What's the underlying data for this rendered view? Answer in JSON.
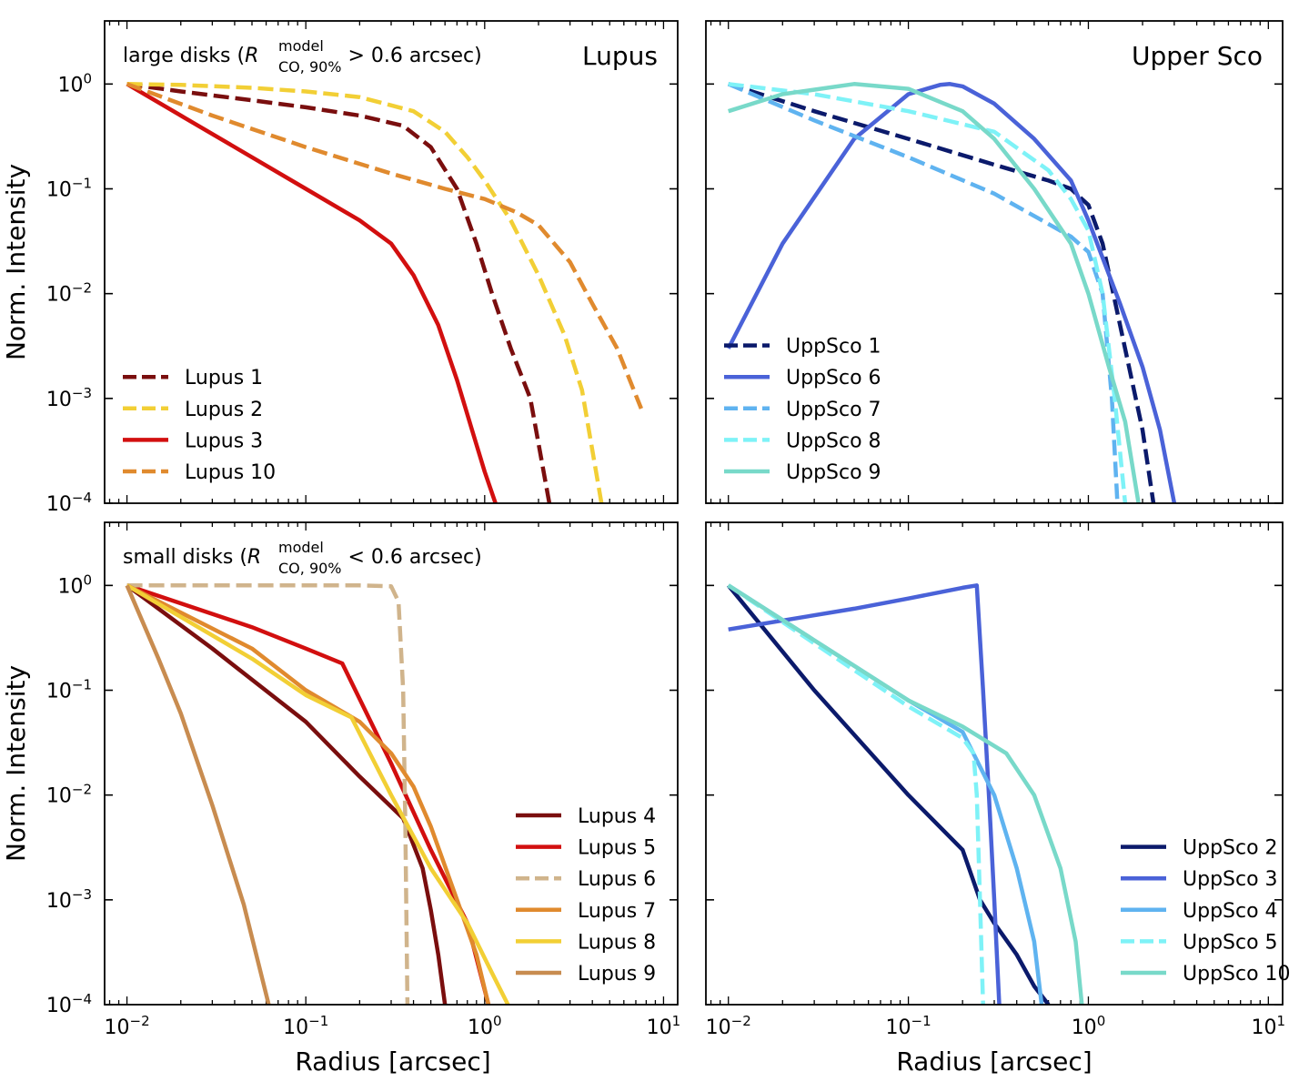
{
  "figure": {
    "xlabel": "Radius [arcsec]",
    "ylabel": "Norm. Intensity"
  },
  "chart_data": [
    {
      "type": "line",
      "xscale": "log",
      "yscale": "log",
      "xlim": [
        0.0075,
        12
      ],
      "ylim": [
        0.0001,
        4
      ],
      "panel_label": "Lupus",
      "annotation": {
        "pre": "large disks (",
        "symbol": "R",
        "sup": "model",
        "sub": "CO, 90%",
        "post": " > 0.6 arcsec)"
      },
      "legend_position": "lower-left",
      "ylabel": "Norm. Intensity",
      "xlabel": "",
      "series": [
        {
          "name": "Lupus 1",
          "color": "#7a0e0e",
          "dash": true,
          "x": [
            0.01,
            0.02,
            0.05,
            0.1,
            0.2,
            0.35,
            0.5,
            0.7,
            0.9,
            1.1,
            1.4,
            1.8,
            2.3
          ],
          "y": [
            1.0,
            0.85,
            0.7,
            0.6,
            0.5,
            0.4,
            0.25,
            0.1,
            0.03,
            0.01,
            0.003,
            0.001,
            0.0001
          ]
        },
        {
          "name": "Lupus 2",
          "color": "#f2cf35",
          "dash": true,
          "x": [
            0.01,
            0.02,
            0.05,
            0.1,
            0.2,
            0.4,
            0.6,
            0.8,
            1.0,
            1.4,
            2.0,
            2.8,
            3.5,
            4.5
          ],
          "y": [
            1.0,
            0.98,
            0.92,
            0.85,
            0.75,
            0.55,
            0.35,
            0.2,
            0.12,
            0.05,
            0.015,
            0.004,
            0.0012,
            0.0001
          ]
        },
        {
          "name": "Lupus 3",
          "color": "#d20f0f",
          "dash": false,
          "x": [
            0.01,
            0.02,
            0.05,
            0.1,
            0.2,
            0.3,
            0.4,
            0.55,
            0.7,
            0.85,
            1.0,
            1.15
          ],
          "y": [
            1.0,
            0.5,
            0.2,
            0.1,
            0.05,
            0.03,
            0.015,
            0.005,
            0.0015,
            0.0005,
            0.0002,
            0.0001
          ]
        },
        {
          "name": "Lupus 10",
          "color": "#e08a2e",
          "dash": true,
          "x": [
            0.01,
            0.03,
            0.1,
            0.3,
            0.6,
            1.0,
            1.5,
            2.0,
            3.0,
            4.0,
            5.5,
            7.5
          ],
          "y": [
            1.0,
            0.5,
            0.25,
            0.14,
            0.1,
            0.08,
            0.06,
            0.045,
            0.02,
            0.008,
            0.003,
            0.0008
          ]
        }
      ]
    },
    {
      "type": "line",
      "xscale": "log",
      "yscale": "log",
      "xlim": [
        0.0075,
        12
      ],
      "ylim": [
        0.0001,
        4
      ],
      "panel_label": "Upper Sco",
      "legend_position": "lower-left",
      "ylabel": "",
      "xlabel": "",
      "series": [
        {
          "name": "UppSco 1",
          "color": "#0b1a6b",
          "dash": true,
          "x": [
            0.01,
            0.03,
            0.1,
            0.3,
            0.6,
            0.8,
            1.0,
            1.2,
            1.5,
            2.0,
            2.3
          ],
          "y": [
            1.0,
            0.55,
            0.3,
            0.17,
            0.12,
            0.1,
            0.07,
            0.03,
            0.005,
            0.0005,
            0.0001
          ]
        },
        {
          "name": "UppSco 6",
          "color": "#4a62d8",
          "dash": false,
          "x": [
            0.01,
            0.02,
            0.05,
            0.1,
            0.15,
            0.17,
            0.2,
            0.3,
            0.5,
            0.8,
            1.0,
            1.5,
            2.0,
            2.5,
            3.0
          ],
          "y": [
            0.003,
            0.03,
            0.3,
            0.8,
            0.98,
            1.0,
            0.95,
            0.65,
            0.3,
            0.12,
            0.05,
            0.008,
            0.002,
            0.0005,
            0.0001
          ]
        },
        {
          "name": "UppSco 7",
          "color": "#5fb3f0",
          "dash": true,
          "x": [
            0.01,
            0.03,
            0.1,
            0.3,
            0.8,
            1.0,
            1.2,
            1.35,
            1.45
          ],
          "y": [
            1.0,
            0.45,
            0.2,
            0.09,
            0.035,
            0.025,
            0.01,
            0.001,
            0.0001
          ]
        },
        {
          "name": "UppSco 8",
          "color": "#7ef2f7",
          "dash": true,
          "x": [
            0.01,
            0.03,
            0.1,
            0.3,
            0.6,
            0.8,
            1.0,
            1.2,
            1.4,
            1.6
          ],
          "y": [
            1.0,
            0.8,
            0.55,
            0.35,
            0.15,
            0.08,
            0.04,
            0.01,
            0.001,
            0.0001
          ]
        },
        {
          "name": "UppSco 9",
          "color": "#78d9c9",
          "dash": false,
          "x": [
            0.01,
            0.02,
            0.05,
            0.1,
            0.2,
            0.3,
            0.5,
            0.8,
            1.0,
            1.3,
            1.6,
            1.9
          ],
          "y": [
            0.55,
            0.8,
            1.0,
            0.9,
            0.55,
            0.3,
            0.1,
            0.03,
            0.01,
            0.002,
            0.0006,
            0.0001
          ]
        }
      ]
    },
    {
      "type": "line",
      "xscale": "log",
      "yscale": "log",
      "xlim": [
        0.0075,
        12
      ],
      "ylim": [
        0.0001,
        4
      ],
      "annotation": {
        "pre": "small disks (",
        "symbol": "R",
        "sup": "model",
        "sub": "CO, 90%",
        "post": " < 0.6 arcsec)"
      },
      "legend_position": "lower-right",
      "ylabel": "Norm. Intensity",
      "xlabel": "Radius [arcsec]",
      "x_ticks": [
        "10^-2",
        "10^-1",
        "10^0",
        "10^1"
      ],
      "series": [
        {
          "name": "Lupus 4",
          "color": "#7a0e0e",
          "dash": false,
          "x": [
            0.01,
            0.03,
            0.1,
            0.2,
            0.35,
            0.45,
            0.5,
            0.55,
            0.6
          ],
          "y": [
            1.0,
            0.25,
            0.05,
            0.015,
            0.006,
            0.002,
            0.0008,
            0.0003,
            0.0001
          ]
        },
        {
          "name": "Lupus 5",
          "color": "#d20f0f",
          "dash": false,
          "x": [
            0.01,
            0.05,
            0.1,
            0.16,
            0.3,
            0.5,
            0.8,
            1.05
          ],
          "y": [
            1.0,
            0.4,
            0.25,
            0.18,
            0.02,
            0.003,
            0.0006,
            0.0001
          ]
        },
        {
          "name": "Lupus 6",
          "color": "#d0b48c",
          "dash": true,
          "x": [
            0.01,
            0.1,
            0.2,
            0.3,
            0.33,
            0.35,
            0.36,
            0.37
          ],
          "y": [
            1.0,
            1.0,
            1.0,
            0.98,
            0.7,
            0.1,
            0.005,
            0.0001
          ]
        },
        {
          "name": "Lupus 7",
          "color": "#e08a2e",
          "dash": false,
          "x": [
            0.01,
            0.05,
            0.1,
            0.2,
            0.3,
            0.4,
            0.5,
            0.7,
            0.9,
            1.05
          ],
          "y": [
            1.0,
            0.25,
            0.1,
            0.05,
            0.025,
            0.012,
            0.005,
            0.001,
            0.0003,
            0.0001
          ]
        },
        {
          "name": "Lupus 8",
          "color": "#f2cf35",
          "dash": false,
          "x": [
            0.01,
            0.05,
            0.1,
            0.18,
            0.3,
            0.5,
            0.8,
            1.1,
            1.35
          ],
          "y": [
            1.0,
            0.2,
            0.09,
            0.055,
            0.01,
            0.002,
            0.0006,
            0.0002,
            0.0001
          ]
        },
        {
          "name": "Lupus 9",
          "color": "#c88c50",
          "dash": false,
          "x": [
            0.01,
            0.015,
            0.02,
            0.03,
            0.045,
            0.062
          ],
          "y": [
            1.0,
            0.2,
            0.06,
            0.008,
            0.0009,
            0.0001
          ]
        }
      ]
    },
    {
      "type": "line",
      "xscale": "log",
      "yscale": "log",
      "xlim": [
        0.0075,
        12
      ],
      "ylim": [
        0.0001,
        4
      ],
      "legend_position": "lower-right",
      "ylabel": "",
      "xlabel": "Radius [arcsec]",
      "x_ticks": [
        "10^-2",
        "10^-1",
        "10^0",
        "10^1"
      ],
      "series": [
        {
          "name": "UppSco 2",
          "color": "#0b1a6b",
          "dash": false,
          "x": [
            0.01,
            0.03,
            0.1,
            0.2,
            0.25,
            0.3,
            0.4,
            0.5,
            0.6
          ],
          "y": [
            1.0,
            0.1,
            0.01,
            0.003,
            0.001,
            0.0006,
            0.0003,
            0.00015,
            0.0001
          ]
        },
        {
          "name": "UppSco 3",
          "color": "#4a62d8",
          "dash": false,
          "x": [
            0.01,
            0.05,
            0.1,
            0.2,
            0.24,
            0.26,
            0.28,
            0.3,
            0.32
          ],
          "y": [
            0.38,
            0.6,
            0.75,
            0.95,
            1.0,
            0.1,
            0.01,
            0.001,
            0.0001
          ]
        },
        {
          "name": "UppSco 4",
          "color": "#5fb3f0",
          "dash": false,
          "x": [
            0.01,
            0.03,
            0.1,
            0.2,
            0.3,
            0.4,
            0.5,
            0.55
          ],
          "y": [
            1.0,
            0.3,
            0.08,
            0.04,
            0.01,
            0.002,
            0.0004,
            0.0001
          ]
        },
        {
          "name": "UppSco 5",
          "color": "#7ef2f7",
          "dash": true,
          "x": [
            0.01,
            0.03,
            0.1,
            0.2,
            0.23,
            0.24,
            0.25,
            0.26
          ],
          "y": [
            1.0,
            0.28,
            0.07,
            0.035,
            0.025,
            0.01,
            0.001,
            0.0001
          ]
        },
        {
          "name": "UppSco 10",
          "color": "#78d9c9",
          "dash": false,
          "x": [
            0.01,
            0.03,
            0.1,
            0.2,
            0.35,
            0.5,
            0.7,
            0.85,
            0.92
          ],
          "y": [
            1.0,
            0.3,
            0.08,
            0.045,
            0.025,
            0.01,
            0.002,
            0.0004,
            0.0001
          ]
        }
      ]
    }
  ]
}
